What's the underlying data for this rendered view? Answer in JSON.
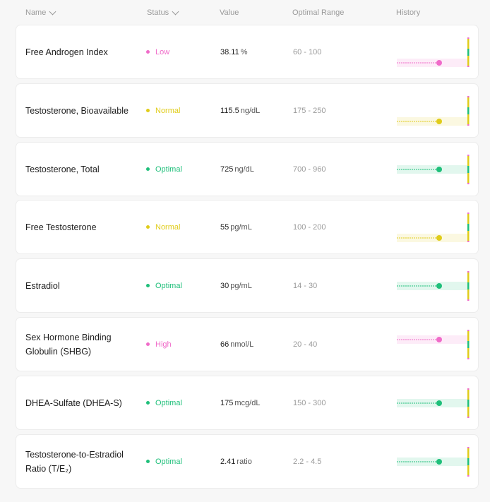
{
  "columns": {
    "name": "Name",
    "status": "Status",
    "value": "Value",
    "range": "Optimal Range",
    "history": "History"
  },
  "colors": {
    "low": "#f06bc9",
    "high": "#f06bc9",
    "normal": "#e0cc1a",
    "optimal": "#1fbf7a"
  },
  "rows": [
    {
      "name": "Free Androgen Index",
      "status": "Low",
      "status_key": "low",
      "value": "38.11",
      "unit": "%",
      "range": "60 - 100",
      "band": "bottom"
    },
    {
      "name": "Testosterone, Bioavailable",
      "status": "Normal",
      "status_key": "normal",
      "value": "115.5",
      "unit": "ng/dL",
      "range": "175 - 250",
      "band": "bottom"
    },
    {
      "name": "Testosterone, Total",
      "status": "Optimal",
      "status_key": "optimal",
      "value": "725",
      "unit": "ng/dL",
      "range": "700 - 960",
      "band": "middle"
    },
    {
      "name": "Free Testosterone",
      "status": "Normal",
      "status_key": "normal",
      "value": "55",
      "unit": "pg/mL",
      "range": "100 - 200",
      "band": "bottom"
    },
    {
      "name": "Estradiol",
      "status": "Optimal",
      "status_key": "optimal",
      "value": "30",
      "unit": "pg/mL",
      "range": "14 - 30",
      "band": "middle"
    },
    {
      "name": "Sex Hormone Binding Globulin (SHBG)",
      "status": "High",
      "status_key": "high",
      "value": "66",
      "unit": "nmol/L",
      "range": "20 - 40",
      "band": "top"
    },
    {
      "name": "DHEA-Sulfate (DHEA-S)",
      "status": "Optimal",
      "status_key": "optimal",
      "value": "175",
      "unit": "mcg/dL",
      "range": "150 - 300",
      "band": "middle"
    },
    {
      "name": "Testosterone-to-Estradiol Ratio (T/E₂)",
      "status": "Optimal",
      "status_key": "optimal",
      "value": "2.41",
      "unit": "ratio",
      "range": "2.2 - 4.5",
      "band": "middle"
    }
  ]
}
